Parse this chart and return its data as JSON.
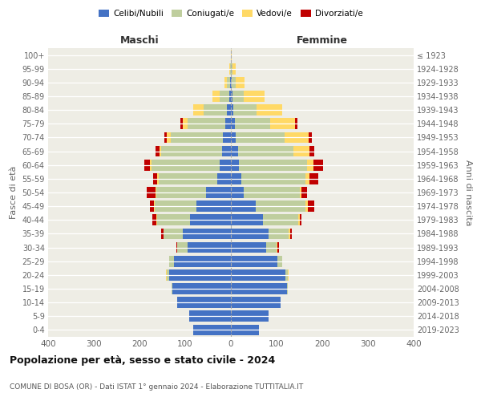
{
  "age_groups": [
    "0-4",
    "5-9",
    "10-14",
    "15-19",
    "20-24",
    "25-29",
    "30-34",
    "35-39",
    "40-44",
    "45-49",
    "50-54",
    "55-59",
    "60-64",
    "65-69",
    "70-74",
    "75-79",
    "80-84",
    "85-89",
    "90-94",
    "95-99",
    "100+"
  ],
  "birth_years": [
    "2019-2023",
    "2014-2018",
    "2009-2013",
    "2004-2008",
    "1999-2003",
    "1994-1998",
    "1989-1993",
    "1984-1988",
    "1979-1983",
    "1974-1978",
    "1969-1973",
    "1964-1968",
    "1959-1963",
    "1954-1958",
    "1949-1953",
    "1944-1948",
    "1939-1943",
    "1934-1938",
    "1929-1933",
    "1924-1928",
    "≤ 1923"
  ],
  "male_celibi": [
    83,
    92,
    118,
    128,
    135,
    125,
    95,
    105,
    90,
    75,
    55,
    30,
    25,
    20,
    17,
    12,
    8,
    3,
    2,
    0,
    0
  ],
  "male_coniugati": [
    0,
    0,
    0,
    2,
    5,
    10,
    22,
    42,
    72,
    92,
    108,
    128,
    148,
    132,
    115,
    82,
    52,
    22,
    6,
    2,
    0
  ],
  "male_vedovi": [
    0,
    0,
    0,
    0,
    2,
    0,
    1,
    1,
    2,
    2,
    2,
    3,
    4,
    5,
    8,
    12,
    22,
    15,
    6,
    2,
    0
  ],
  "male_divorziati": [
    0,
    0,
    0,
    0,
    0,
    0,
    2,
    5,
    8,
    8,
    20,
    10,
    12,
    8,
    5,
    5,
    0,
    0,
    0,
    0,
    0
  ],
  "female_nubili": [
    62,
    82,
    108,
    122,
    120,
    102,
    78,
    82,
    70,
    55,
    28,
    22,
    18,
    15,
    10,
    8,
    5,
    3,
    2,
    0,
    0
  ],
  "female_coniugate": [
    0,
    0,
    0,
    2,
    5,
    10,
    22,
    45,
    78,
    108,
    122,
    142,
    148,
    122,
    108,
    78,
    52,
    25,
    8,
    3,
    0
  ],
  "female_vedove": [
    0,
    0,
    0,
    0,
    2,
    0,
    2,
    2,
    2,
    5,
    5,
    8,
    15,
    35,
    52,
    55,
    55,
    45,
    20,
    8,
    1
  ],
  "female_divorziate": [
    0,
    0,
    0,
    0,
    0,
    0,
    3,
    5,
    5,
    15,
    12,
    20,
    20,
    10,
    8,
    5,
    0,
    0,
    0,
    0,
    0
  ],
  "colors": {
    "celibi_nubili": "#4472C4",
    "coniugati": "#BFCE9E",
    "vedovi": "#FFD966",
    "divorziati": "#C00000"
  },
  "title": "Popolazione per età, sesso e stato civile - 2024",
  "subtitle": "COMUNE DI BOSA (OR) - Dati ISTAT 1° gennaio 2024 - Elaborazione TUTTITALIA.IT",
  "label_maschi": "Maschi",
  "label_femmine": "Femmine",
  "ylabel_left": "Fasce di età",
  "ylabel_right": "Anni di nascita",
  "xlim": 400,
  "bg_color": "#eeede5",
  "legend_labels": [
    "Celibi/Nubili",
    "Coniugati/e",
    "Vedovi/e",
    "Divorziati/e"
  ]
}
